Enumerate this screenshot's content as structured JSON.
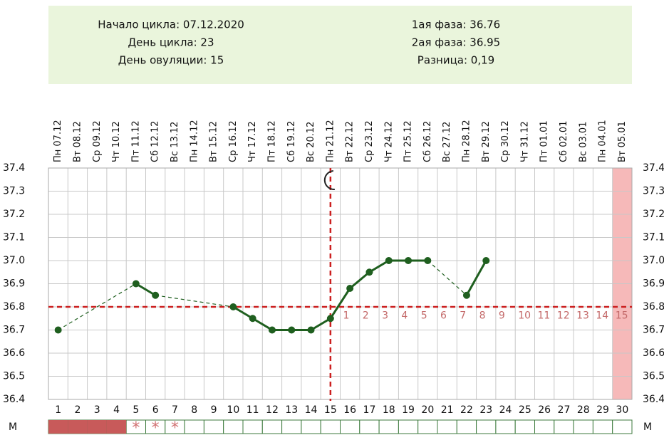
{
  "header": {
    "left": [
      "Начало цикла: 07.12.2020",
      "День цикла: 23",
      "День овуляции: 15"
    ],
    "right": [
      "1ая фаза: 36.76",
      "2ая фаза: 36.95",
      "Разница: 0,19"
    ]
  },
  "chart_data": {
    "type": "line",
    "categories": [
      "Пн 07.12",
      "Вт 08.12",
      "Ср 09.12",
      "Чт 10.12",
      "Пт 11.12",
      "Сб 12.12",
      "Вс 13.12",
      "Пн 14.12",
      "Вт 15.12",
      "Ср 16.12",
      "Чт 17.12",
      "Пт 18.12",
      "Сб 19.12",
      "Вс 20.12",
      "Пн 21.12",
      "Вт 22.12",
      "Ср 23.12",
      "Чт 24.12",
      "Пт 25.12",
      "Сб 26.12",
      "Вс 27.12",
      "Пн 28.12",
      "Вт 29.12",
      "Ср 30.12",
      "Чт 31.12",
      "Пт 01.01",
      "Сб 02.01",
      "Вс 03.01",
      "Пн 04.01",
      "Вт 05.01"
    ],
    "days": [
      1,
      2,
      3,
      4,
      5,
      6,
      7,
      8,
      9,
      10,
      11,
      12,
      13,
      14,
      15,
      16,
      17,
      18,
      19,
      20,
      21,
      22,
      23,
      24,
      25,
      26,
      27,
      28,
      29,
      30
    ],
    "values": [
      36.7,
      null,
      null,
      null,
      36.9,
      36.85,
      null,
      null,
      null,
      36.8,
      36.75,
      36.7,
      36.7,
      36.7,
      36.75,
      36.88,
      36.95,
      37.0,
      37.0,
      37.0,
      null,
      36.85,
      37.0,
      null,
      null,
      null,
      null,
      null,
      null,
      null
    ],
    "color": "#1f5f1f",
    "ylim": [
      36.4,
      37.4
    ],
    "yticks": [
      36.4,
      36.5,
      36.6,
      36.7,
      36.8,
      36.9,
      {
        "value": 37.0,
        "label": "37.0"
      },
      37.1,
      37.2,
      37.3,
      37.4
    ],
    "grid": true,
    "cover_line": 36.8,
    "cover_color": "#cc2020",
    "ovulation_day": 15,
    "post_ovulation_days": [
      1,
      2,
      3,
      4,
      5,
      6,
      7,
      8,
      9,
      10,
      11,
      12,
      13,
      14,
      15
    ],
    "highlight_day": 30,
    "highlight_color": "#f6b9b9",
    "m_row": {
      "label": "М",
      "bleeding_days": [
        1,
        2,
        3,
        4
      ],
      "spotting_days": [
        5,
        6,
        7
      ],
      "spot_symbol": "*",
      "bleeding_color": "#c85a5a"
    }
  }
}
